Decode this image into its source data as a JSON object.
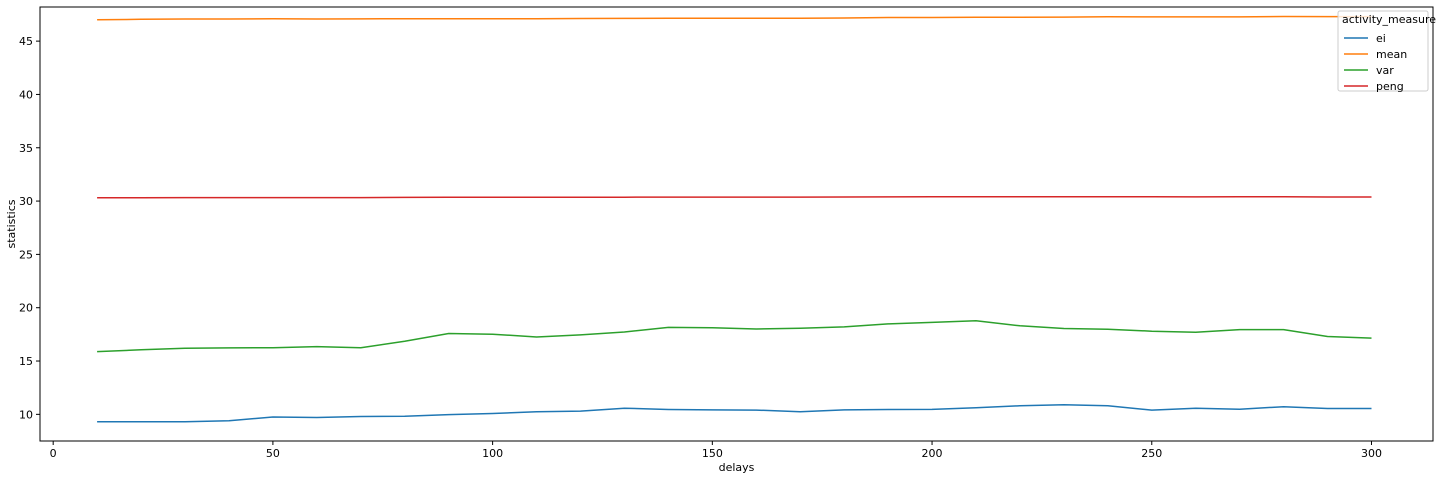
{
  "chart_data": {
    "type": "line",
    "xlabel": "delays",
    "ylabel": "statistics",
    "xlim": [
      -3,
      314
    ],
    "ylim": [
      7.5,
      48.2
    ],
    "xticks": [
      0,
      50,
      100,
      150,
      200,
      250,
      300
    ],
    "yticks": [
      10,
      15,
      20,
      25,
      30,
      35,
      40,
      45
    ],
    "grid": false,
    "legend": {
      "title": "activity_measure",
      "placement": "top-right"
    },
    "x": [
      10,
      20,
      30,
      40,
      50,
      60,
      70,
      80,
      90,
      100,
      110,
      120,
      130,
      140,
      150,
      160,
      170,
      180,
      190,
      200,
      210,
      220,
      230,
      240,
      250,
      260,
      270,
      280,
      290,
      300
    ],
    "series": [
      {
        "name": "ei",
        "color": "#1f77b4",
        "values": [
          9.3,
          9.3,
          9.3,
          9.4,
          9.75,
          9.7,
          9.8,
          9.82,
          9.98,
          10.08,
          10.25,
          10.3,
          10.58,
          10.45,
          10.42,
          10.4,
          10.25,
          10.42,
          10.45,
          10.46,
          10.62,
          10.8,
          10.9,
          10.8,
          10.4,
          10.58,
          10.48,
          10.72,
          10.55,
          10.55
        ]
      },
      {
        "name": "mean",
        "color": "#ff7f0e",
        "values": [
          47.0,
          47.05,
          47.07,
          47.07,
          47.1,
          47.07,
          47.08,
          47.1,
          47.1,
          47.1,
          47.1,
          47.12,
          47.13,
          47.14,
          47.15,
          47.15,
          47.15,
          47.17,
          47.22,
          47.22,
          47.24,
          47.23,
          47.25,
          47.28,
          47.27,
          47.27,
          47.27,
          47.31,
          47.3,
          47.3
        ]
      },
      {
        "name": "var",
        "color": "#2ca02c",
        "values": [
          15.88,
          16.05,
          16.2,
          16.23,
          16.25,
          16.35,
          16.25,
          16.85,
          17.58,
          17.52,
          17.25,
          17.45,
          17.72,
          18.15,
          18.12,
          18.0,
          18.08,
          18.2,
          18.48,
          18.62,
          18.78,
          18.3,
          18.05,
          17.98,
          17.8,
          17.7,
          17.95,
          17.95,
          17.3,
          17.15
        ]
      },
      {
        "name": "peng",
        "color": "#d62728",
        "values": [
          30.32,
          30.32,
          30.33,
          30.33,
          30.33,
          30.33,
          30.33,
          30.34,
          30.35,
          30.35,
          30.35,
          30.36,
          30.36,
          30.37,
          30.37,
          30.37,
          30.37,
          30.38,
          30.39,
          30.4,
          30.41,
          30.41,
          30.41,
          30.41,
          30.4,
          30.39,
          30.4,
          30.4,
          30.38,
          30.38
        ]
      }
    ]
  }
}
